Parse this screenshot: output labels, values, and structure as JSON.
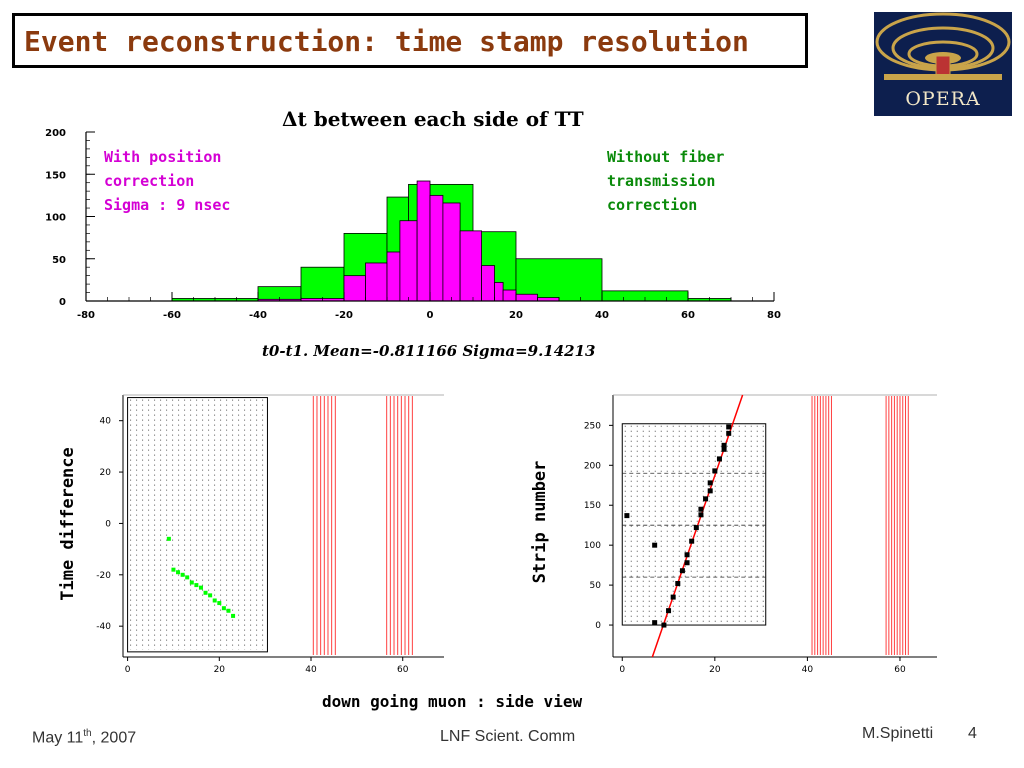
{
  "slide": {
    "title": "Event reconstruction: time stamp resolution",
    "logo_text": "OPERA",
    "caption": "down going muon : side view",
    "footer": {
      "date_main": "May 11",
      "date_sup": "th",
      "date_tail": ", 2007",
      "center": "LNF Scient. Comm",
      "author": "M.Spinetti",
      "page": "4"
    },
    "colors": {
      "title": "#8b3a0e",
      "green_fill": "#00ff00",
      "magenta_fill": "#ff00ff",
      "annot_magenta": "#d400d4",
      "annot_green": "#0a8a0a",
      "track_red": "#ff0000",
      "logo_bg": "#0d1f4e"
    }
  },
  "histogram": {
    "title": "Δt between each side of TT",
    "stats_text": "t0-t1.   Mean=-0.811166  Sigma=9.14213",
    "annot_magenta": [
      "With position",
      "correction",
      "Sigma : 9 nsec"
    ],
    "annot_green": [
      "Without fiber",
      "transmission",
      "correction"
    ]
  },
  "event_left": {
    "ylabel": "Time difference"
  },
  "event_right": {
    "ylabel": "Strip number"
  },
  "chart_data": [
    {
      "type": "bar",
      "chart_id": "hist",
      "title": "Δt between each side of TT",
      "xlim": [
        -80,
        80
      ],
      "ylim": [
        0,
        200
      ],
      "xticks": [
        -80,
        -60,
        -40,
        -20,
        0,
        20,
        40,
        60,
        80
      ],
      "yticks": [
        0,
        50,
        100,
        150,
        200
      ],
      "series": [
        {
          "color": "#00ff00",
          "bins": [
            [
              -60,
              -40,
              3
            ],
            [
              -40,
              -30,
              17
            ],
            [
              -30,
              -20,
              40
            ],
            [
              -20,
              -10,
              80
            ],
            [
              -10,
              -5,
              123
            ],
            [
              -5,
              0,
              138
            ],
            [
              0,
              10,
              138
            ],
            [
              10,
              20,
              82
            ],
            [
              20,
              40,
              50
            ],
            [
              40,
              60,
              12
            ],
            [
              60,
              70,
              3
            ]
          ]
        },
        {
          "color": "#ff00ff",
          "bins": [
            [
              -40,
              -30,
              2
            ],
            [
              -30,
              -20,
              3
            ],
            [
              -20,
              -15,
              30
            ],
            [
              -15,
              -10,
              45
            ],
            [
              -10,
              -7,
              58
            ],
            [
              -7,
              -3,
              95
            ],
            [
              -3,
              0,
              142
            ],
            [
              0,
              3,
              125
            ],
            [
              3,
              7,
              116
            ],
            [
              7,
              12,
              83
            ],
            [
              12,
              15,
              42
            ],
            [
              15,
              17,
              22
            ],
            [
              17,
              20,
              13
            ],
            [
              20,
              25,
              8
            ],
            [
              25,
              30,
              4
            ]
          ]
        }
      ]
    },
    {
      "type": "scatter",
      "chart_id": "left",
      "xlim": [
        -1,
        69
      ],
      "ylim": [
        -52,
        50
      ],
      "xticks": [
        0,
        20,
        40,
        60
      ],
      "yticks": [
        -40,
        -20,
        0,
        20,
        40
      ],
      "grid_box": {
        "x": [
          0,
          30.5
        ],
        "y": [
          -50,
          49
        ]
      },
      "hit_points": [
        [
          9,
          -6
        ],
        [
          10,
          -18
        ],
        [
          11,
          -19
        ],
        [
          12,
          -20
        ],
        [
          13,
          -21
        ],
        [
          14,
          -23
        ],
        [
          15,
          -24
        ],
        [
          16,
          -25
        ],
        [
          17,
          -27
        ],
        [
          18,
          -28
        ],
        [
          19,
          -30
        ],
        [
          20,
          -31
        ],
        [
          21,
          -33
        ],
        [
          22,
          -34
        ],
        [
          23,
          -36
        ]
      ],
      "point_color": "#00ff00",
      "red_line_groups": [
        [
          40.5,
          41.3,
          42.1,
          42.9,
          43.7,
          44.5,
          45.3
        ],
        [
          56.5,
          57.3,
          58.1,
          58.9,
          59.7,
          60.5,
          61.3,
          62.1
        ]
      ]
    },
    {
      "type": "scatter",
      "chart_id": "right",
      "xlim": [
        -2,
        68
      ],
      "ylim": [
        -40,
        288
      ],
      "xticks": [
        0,
        20,
        40,
        60
      ],
      "yticks": [
        0,
        50,
        100,
        150,
        200,
        250
      ],
      "grid_box": {
        "x": [
          0,
          31
        ],
        "y": [
          0,
          252
        ]
      },
      "hit_points": [
        [
          1,
          137
        ],
        [
          7,
          100
        ],
        [
          7,
          3
        ],
        [
          9,
          0
        ],
        [
          10,
          18
        ],
        [
          11,
          35
        ],
        [
          12,
          52
        ],
        [
          13,
          68
        ],
        [
          14,
          78
        ],
        [
          14,
          88
        ],
        [
          15,
          105
        ],
        [
          16,
          122
        ],
        [
          17,
          138
        ],
        [
          17,
          145
        ],
        [
          18,
          158
        ],
        [
          19,
          168
        ],
        [
          19,
          178
        ],
        [
          20,
          193
        ],
        [
          21,
          208
        ],
        [
          22,
          220
        ],
        [
          22,
          225
        ],
        [
          23,
          240
        ],
        [
          23,
          248
        ]
      ],
      "fit_line": [
        [
          6.5,
          -40
        ],
        [
          26,
          288
        ]
      ],
      "red_line_groups": [
        [
          41,
          41.6,
          42.2,
          42.8,
          43.4,
          44,
          44.6,
          45.2
        ],
        [
          57,
          57.6,
          58.2,
          58.8,
          59.4,
          60,
          60.6,
          61.2,
          61.8
        ]
      ]
    }
  ]
}
